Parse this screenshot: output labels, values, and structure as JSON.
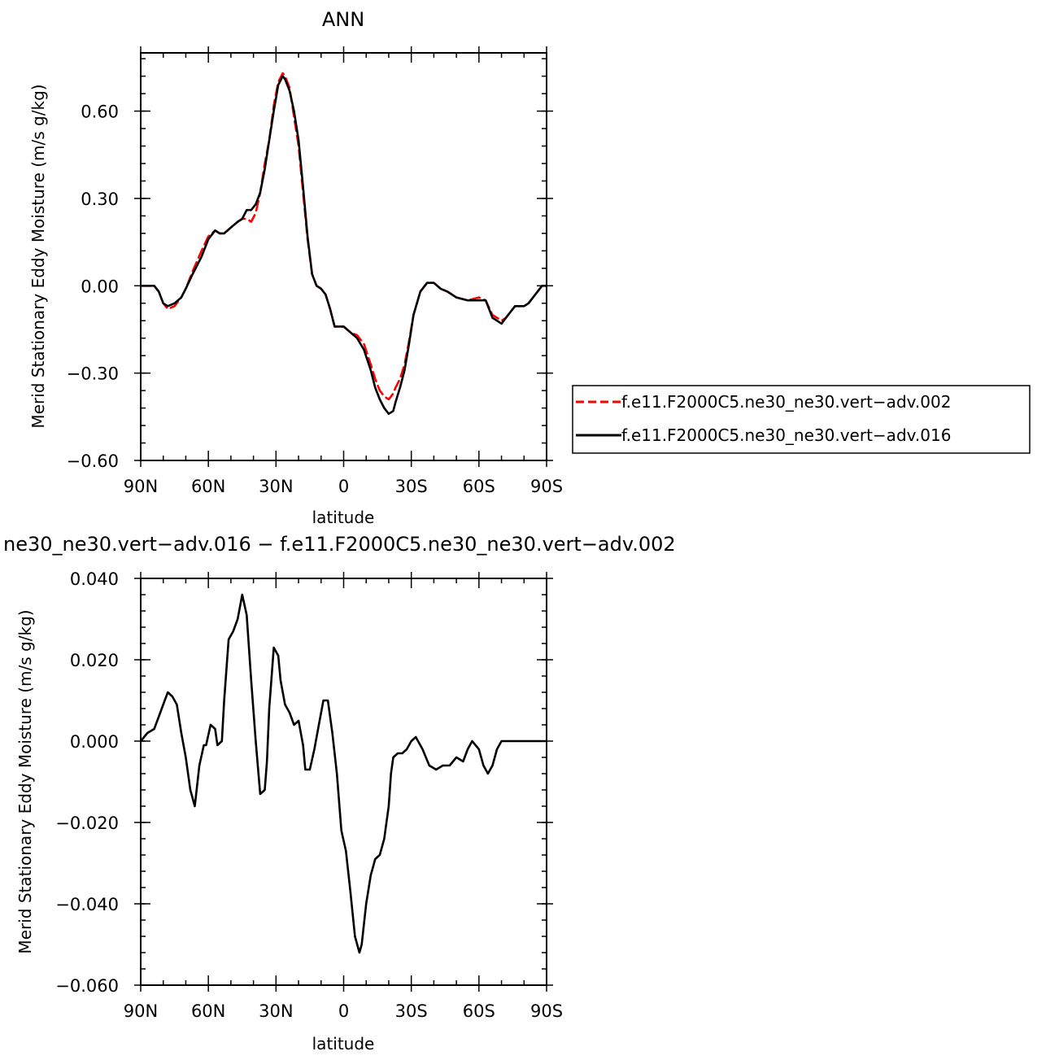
{
  "chart_data": [
    {
      "type": "line",
      "title": "ANN",
      "xlabel": "latitude",
      "ylabel": "Merid Stationary Eddy Moisture (m/s g/kg)",
      "xlim": [
        90,
        -90
      ],
      "ylim": [
        -0.6,
        0.8
      ],
      "xticks": [
        90,
        60,
        30,
        0,
        -30,
        -60,
        -90
      ],
      "xtick_labels": [
        "90N",
        "60N",
        "30N",
        "0",
        "30S",
        "60S",
        "90S"
      ],
      "yticks": [
        -0.6,
        -0.3,
        0.0,
        0.3,
        0.6
      ],
      "ytick_labels": [
        "−0.60",
        "−0.30",
        "0.00",
        "0.30",
        "0.60"
      ],
      "legend_position": "right",
      "series": [
        {
          "name": "f.e11.F2000C5.ne30_ne30.vert−adv.002",
          "color": "#ff0000",
          "dash": "dashed",
          "x": [
            90,
            87,
            84,
            82,
            80,
            78,
            75,
            72,
            70,
            67,
            63,
            60,
            57,
            55,
            53,
            50,
            47,
            45,
            43,
            41,
            39,
            37,
            35,
            33,
            31,
            29,
            27,
            26,
            24,
            22,
            20,
            18,
            16,
            14,
            12,
            10,
            8,
            6,
            4,
            2,
            0,
            -3,
            -6,
            -9,
            -12,
            -14,
            -16,
            -18,
            -20,
            -22,
            -23,
            -25,
            -27,
            -29,
            -31,
            -34,
            -37,
            -40,
            -43,
            -46,
            -50,
            -55,
            -60,
            -63,
            -66,
            -68,
            -70,
            -72,
            -74,
            -76,
            -78,
            -80,
            -82,
            -84,
            -86,
            -88,
            -90
          ],
          "y": [
            0.0,
            0.0,
            0.0,
            -0.02,
            -0.06,
            -0.08,
            -0.07,
            -0.04,
            -0.01,
            0.05,
            0.12,
            0.17,
            0.19,
            0.18,
            0.18,
            0.2,
            0.22,
            0.23,
            0.23,
            0.22,
            0.25,
            0.32,
            0.42,
            0.5,
            0.62,
            0.7,
            0.73,
            0.72,
            0.68,
            0.58,
            0.48,
            0.32,
            0.16,
            0.04,
            0.0,
            -0.01,
            -0.03,
            -0.08,
            -0.14,
            -0.14,
            -0.14,
            -0.16,
            -0.17,
            -0.2,
            -0.27,
            -0.32,
            -0.36,
            -0.38,
            -0.39,
            -0.37,
            -0.35,
            -0.32,
            -0.27,
            -0.19,
            -0.1,
            -0.02,
            0.01,
            0.01,
            -0.01,
            -0.02,
            -0.04,
            -0.05,
            -0.04,
            -0.05,
            -0.1,
            -0.11,
            -0.12,
            -0.11,
            -0.09,
            -0.07,
            -0.07,
            -0.07,
            -0.06,
            -0.04,
            -0.02,
            0.0,
            0.0
          ]
        },
        {
          "name": "f.e11.F2000C5.ne30_ne30.vert−adv.016",
          "color": "#000000",
          "dash": "solid",
          "x": [
            90,
            87,
            84,
            82,
            80,
            78,
            75,
            72,
            70,
            67,
            63,
            60,
            57,
            55,
            53,
            50,
            47,
            45,
            43,
            41,
            39,
            37,
            35,
            33,
            31,
            29,
            27,
            26,
            24,
            22,
            20,
            18,
            16,
            14,
            12,
            10,
            8,
            6,
            4,
            2,
            0,
            -3,
            -6,
            -9,
            -12,
            -14,
            -16,
            -18,
            -20,
            -22,
            -23,
            -25,
            -27,
            -29,
            -31,
            -34,
            -37,
            -40,
            -43,
            -46,
            -50,
            -55,
            -60,
            -63,
            -66,
            -68,
            -70,
            -72,
            -74,
            -76,
            -78,
            -80,
            -82,
            -84,
            -86,
            -88,
            -90
          ],
          "y": [
            0.0,
            0.0,
            0.0,
            -0.02,
            -0.06,
            -0.07,
            -0.06,
            -0.04,
            -0.01,
            0.04,
            0.1,
            0.16,
            0.19,
            0.18,
            0.18,
            0.2,
            0.22,
            0.23,
            0.26,
            0.26,
            0.28,
            0.32,
            0.4,
            0.5,
            0.6,
            0.69,
            0.72,
            0.71,
            0.67,
            0.6,
            0.5,
            0.34,
            0.17,
            0.04,
            0.0,
            -0.01,
            -0.03,
            -0.08,
            -0.14,
            -0.14,
            -0.14,
            -0.16,
            -0.18,
            -0.22,
            -0.29,
            -0.35,
            -0.39,
            -0.42,
            -0.44,
            -0.43,
            -0.4,
            -0.35,
            -0.29,
            -0.2,
            -0.1,
            -0.02,
            0.01,
            0.01,
            -0.01,
            -0.02,
            -0.04,
            -0.05,
            -0.05,
            -0.05,
            -0.11,
            -0.12,
            -0.13,
            -0.11,
            -0.09,
            -0.07,
            -0.07,
            -0.07,
            -0.06,
            -0.04,
            -0.02,
            0.0,
            0.0
          ]
        }
      ]
    },
    {
      "type": "line",
      "title": "ne30_ne30.vert−adv.016 − f.e11.F2000C5.ne30_ne30.vert−adv.002",
      "xlabel": "latitude",
      "ylabel": "Merid Stationary Eddy Moisture (m/s g/kg)",
      "xlim": [
        90,
        -90
      ],
      "ylim": [
        -0.06,
        0.04
      ],
      "xticks": [
        90,
        60,
        30,
        0,
        -30,
        -60,
        -90
      ],
      "xtick_labels": [
        "90N",
        "60N",
        "30N",
        "0",
        "30S",
        "60S",
        "90S"
      ],
      "yticks": [
        -0.06,
        -0.04,
        -0.02,
        0.0,
        0.02,
        0.04
      ],
      "ytick_labels": [
        "−0.060",
        "−0.040",
        "−0.020",
        "0.000",
        "0.020",
        "0.040"
      ],
      "series": [
        {
          "color": "#000000",
          "dash": "solid",
          "x": [
            90,
            87,
            84,
            82,
            80,
            78,
            76,
            74,
            72,
            70,
            68,
            66,
            64,
            62,
            61,
            59,
            57,
            56,
            54,
            53,
            51,
            49,
            47,
            45,
            43,
            41,
            39,
            37,
            35,
            34,
            33,
            31,
            29,
            28,
            26,
            24,
            22,
            20,
            18,
            17,
            15,
            13,
            11,
            9,
            7,
            5,
            3,
            1,
            -1,
            -3,
            -5,
            -7,
            -8,
            -10,
            -12,
            -14,
            -16,
            -18,
            -20,
            -21,
            -22,
            -24,
            -26,
            -28,
            -30,
            -32,
            -35,
            -38,
            -41,
            -44,
            -47,
            -50,
            -53,
            -55,
            -57,
            -60,
            -62,
            -64,
            -66,
            -68,
            -70,
            -72,
            -74,
            -76,
            -79,
            -81,
            -83,
            -85,
            -87,
            -90
          ],
          "y": [
            0.0,
            0.002,
            0.003,
            0.006,
            0.009,
            0.012,
            0.011,
            0.009,
            0.002,
            -0.004,
            -0.012,
            -0.016,
            -0.006,
            -0.001,
            -0.001,
            0.004,
            0.003,
            -0.001,
            0.0,
            0.01,
            0.025,
            0.027,
            0.03,
            0.036,
            0.031,
            0.015,
            0.0,
            -0.013,
            -0.012,
            -0.005,
            0.008,
            0.023,
            0.021,
            0.015,
            0.009,
            0.007,
            0.004,
            0.005,
            -0.001,
            -0.007,
            -0.007,
            -0.002,
            0.004,
            0.01,
            0.01,
            0.002,
            -0.008,
            -0.022,
            -0.027,
            -0.037,
            -0.048,
            -0.052,
            -0.05,
            -0.04,
            -0.033,
            -0.029,
            -0.028,
            -0.024,
            -0.016,
            -0.008,
            -0.004,
            -0.003,
            -0.003,
            -0.002,
            0.0,
            0.001,
            -0.002,
            -0.006,
            -0.007,
            -0.006,
            -0.006,
            -0.004,
            -0.005,
            -0.002,
            0.0,
            -0.002,
            -0.006,
            -0.008,
            -0.006,
            -0.002,
            0.0,
            0.0,
            0.0,
            0.0,
            0.0,
            0.0,
            0.0,
            0.0,
            0.0,
            0.0
          ]
        }
      ]
    }
  ]
}
